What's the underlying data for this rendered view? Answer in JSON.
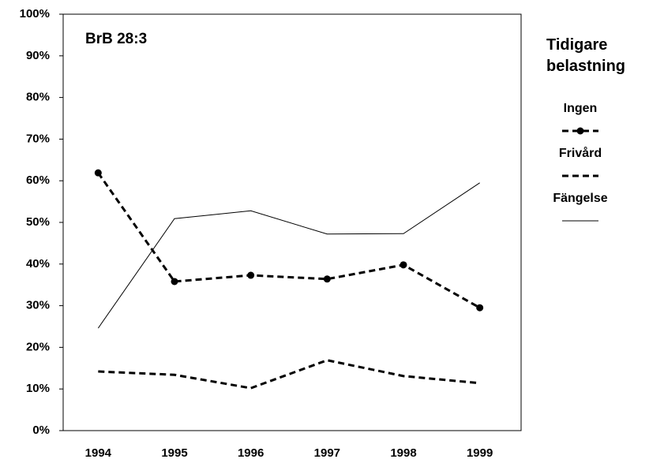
{
  "chart_data": {
    "type": "line",
    "annotation": "BrB 28:3",
    "legend_title": "Tidigare belastning",
    "categories": [
      "1994",
      "1995",
      "1996",
      "1997",
      "1998",
      "1999"
    ],
    "series": [
      {
        "name": "Ingen",
        "color": "#000000",
        "style": "dashed",
        "width": 3,
        "marker": "circle",
        "values": [
          61.9,
          35.8,
          37.3,
          36.4,
          39.8,
          29.5
        ]
      },
      {
        "name": "Frivård",
        "color": "#000000",
        "style": "dashed",
        "width": 3,
        "values": [
          14.2,
          13.4,
          10.2,
          16.9,
          13.1,
          11.4
        ]
      },
      {
        "name": "Fängelse",
        "color": "#000000",
        "style": "solid",
        "width": 1,
        "values": [
          24.6,
          50.9,
          52.8,
          47.2,
          47.3,
          59.5
        ]
      }
    ],
    "ylim": [
      0,
      100
    ],
    "yticks": [
      {
        "value": 0,
        "label": "0%"
      },
      {
        "value": 10,
        "label": "10%"
      },
      {
        "value": 20,
        "label": "20%"
      },
      {
        "value": 30,
        "label": "30%"
      },
      {
        "value": 40,
        "label": "40%"
      },
      {
        "value": 50,
        "label": "50%"
      },
      {
        "value": 60,
        "label": "60%"
      },
      {
        "value": 70,
        "label": "70%"
      },
      {
        "value": 80,
        "label": "80%"
      },
      {
        "value": 90,
        "label": "90%"
      },
      {
        "value": 100,
        "label": "100%"
      }
    ],
    "grid": false,
    "legend": "right"
  }
}
